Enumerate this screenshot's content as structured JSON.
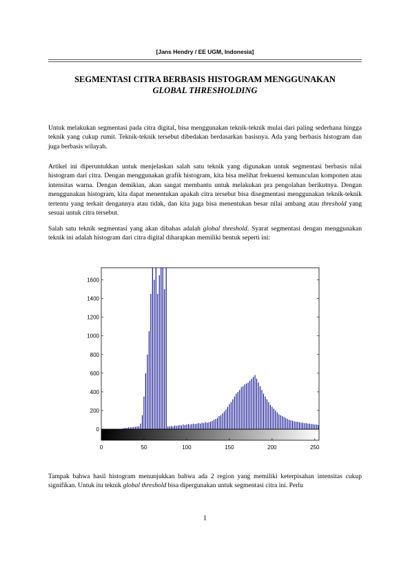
{
  "header": "[Jans Hendry / EE UGM, Indonesia]",
  "title": {
    "line1": "SEGMENTASI CITRA BERBASIS HISTOGRAM MENGGUNAKAN",
    "line2": "GLOBAL THRESHOLDING"
  },
  "paragraphs": [
    [
      "Untuk melakukan segmentasi pada citra digital, bisa menggunakan teknik-teknik mulai dari paling sederhana hingga teknik yang cukup rumit. Teknik-teknik tersebut dibedakan berdasarkan basisnya. Ada yang berbasis histogram dan juga berbasis wilayah."
    ],
    [
      "Artikel ini diperuntukkan untuk menjelaskan salah satu teknik yang digunakan untuk segmentasi berbasis nilai histogram dari citra. Dengan menggunakan grafik histogram, kita bisa melihat frekuensi kemunculan komponen atau intensitas warna. Dengan demikian, akan sangat membantu untuk melakukan pra pengolahan berikutnya. Dengan menggunakan histogram, kita dapat menentukan apakah citra tersebut bisa disegmentasi menggunakan teknik-teknik tertentu yang terkait dengannya atau tidak, dan kita juga bisa menentukan besar nilai ambang atau ",
      "threshold",
      " yang sesuai untuk citra tersebut."
    ],
    [
      "Salah satu teknik segmentasi yang akan dibahas adalah ",
      "global threshold",
      ". Syarat segmentasi dengan menggunakan teknik ini adalah histogram dari citra digital diharapkan memiliki bentuk seperti ini:"
    ],
    [
      "Tampak bahwa hasil histogram menunjukkan bahwa ada 2 region yang memiliki keterpisahan intensitas cukup signifikan. Untuk itu teknik ",
      "global threshold",
      " bisa dipergunakan untuk segmentasi citra ini. Perlu"
    ]
  ],
  "chart_data": {
    "type": "bar",
    "color": "#00008b",
    "x": [
      0,
      2,
      4,
      6,
      8,
      10,
      12,
      14,
      16,
      18,
      20,
      22,
      24,
      26,
      28,
      30,
      32,
      34,
      36,
      38,
      40,
      42,
      44,
      46,
      48,
      50,
      52,
      54,
      56,
      58,
      60,
      62,
      64,
      66,
      68,
      70,
      72,
      74,
      76,
      78,
      80,
      82,
      84,
      86,
      88,
      90,
      92,
      94,
      96,
      98,
      100,
      102,
      104,
      106,
      108,
      110,
      112,
      114,
      116,
      118,
      120,
      122,
      124,
      126,
      128,
      130,
      132,
      134,
      136,
      138,
      140,
      142,
      144,
      146,
      148,
      150,
      152,
      154,
      156,
      158,
      160,
      162,
      164,
      166,
      168,
      170,
      172,
      174,
      176,
      178,
      180,
      182,
      184,
      186,
      188,
      190,
      192,
      194,
      196,
      198,
      200,
      202,
      204,
      206,
      208,
      210,
      212,
      214,
      216,
      218,
      220,
      222,
      224,
      226,
      228,
      230,
      232,
      234,
      236,
      238,
      240,
      242,
      244,
      246,
      248,
      250,
      252,
      254
    ],
    "values": [
      0,
      0,
      0,
      0,
      0,
      0,
      0,
      0,
      0,
      0,
      0,
      0,
      5,
      10,
      15,
      15,
      20,
      20,
      20,
      25,
      25,
      30,
      30,
      60,
      150,
      350,
      600,
      800,
      1050,
      1450,
      1800,
      1600,
      1800,
      1450,
      1650,
      1800,
      1800,
      1500,
      1800,
      30,
      30,
      35,
      30,
      40,
      35,
      40,
      45,
      40,
      50,
      45,
      50,
      55,
      50,
      55,
      60,
      55,
      60,
      65,
      60,
      70,
      65,
      75,
      70,
      75,
      80,
      90,
      100,
      110,
      120,
      140,
      150,
      170,
      190,
      210,
      240,
      270,
      290,
      320,
      350,
      380,
      400,
      420,
      450,
      460,
      480,
      490,
      500,
      520,
      540,
      560,
      580,
      540,
      500,
      460,
      420,
      380,
      350,
      320,
      290,
      260,
      240,
      220,
      200,
      180,
      160,
      150,
      140,
      130,
      120,
      110,
      100,
      95,
      90,
      85,
      80,
      80,
      75,
      70,
      70,
      65,
      65,
      60,
      60,
      55,
      55,
      50,
      50,
      45
    ],
    "xlim": [
      0,
      255
    ],
    "ylim": [
      0,
      1730
    ],
    "xticks": [
      0,
      50,
      100,
      150,
      200,
      250
    ],
    "yticks": [
      0,
      200,
      400,
      600,
      800,
      1000,
      1200,
      1400,
      1600
    ]
  },
  "page_number": "1"
}
